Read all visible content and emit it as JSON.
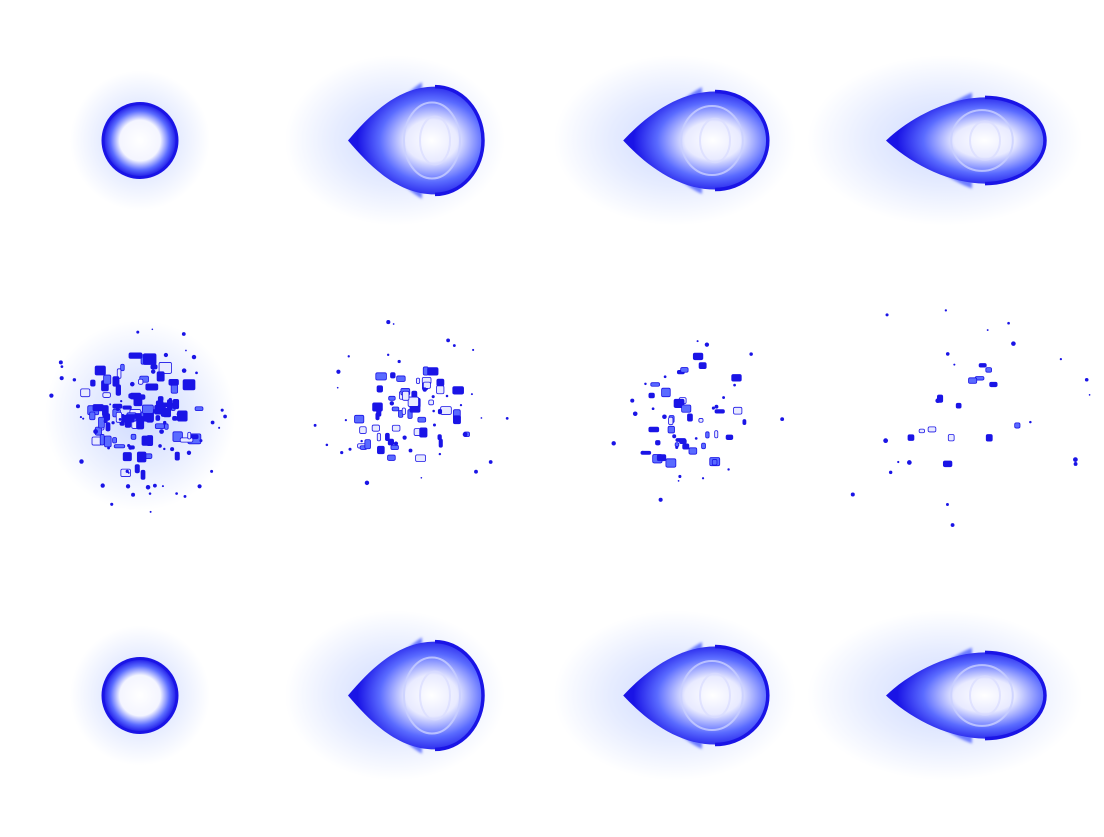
{
  "sprite_sheet": {
    "grid": {
      "columns": 4,
      "rows": 3
    },
    "colors": {
      "background": "#ffffff",
      "energy_dark": "#1a14e6",
      "energy_mid": "#5a6bff",
      "energy_light": "#e8eaff",
      "glow": "#c9d6ff"
    },
    "rows": [
      {
        "name": "projectile",
        "frames": [
          {
            "kind": "orb"
          },
          {
            "kind": "comet",
            "stretch": 1.0
          },
          {
            "kind": "comet",
            "stretch": 1.1
          },
          {
            "kind": "comet",
            "stretch": 1.25
          }
        ]
      },
      {
        "name": "explosion",
        "frames": [
          {
            "kind": "burst",
            "density": 1.0,
            "glow": true
          },
          {
            "kind": "burst",
            "density": 0.6,
            "glow": false
          },
          {
            "kind": "burst",
            "density": 0.4,
            "glow": false
          },
          {
            "kind": "burst",
            "density": 0.15,
            "glow": false
          }
        ]
      },
      {
        "name": "projectile-repeat",
        "frames": [
          {
            "kind": "orb"
          },
          {
            "kind": "comet",
            "stretch": 1.0
          },
          {
            "kind": "comet",
            "stretch": 1.1
          },
          {
            "kind": "comet",
            "stretch": 1.25
          }
        ]
      }
    ]
  }
}
